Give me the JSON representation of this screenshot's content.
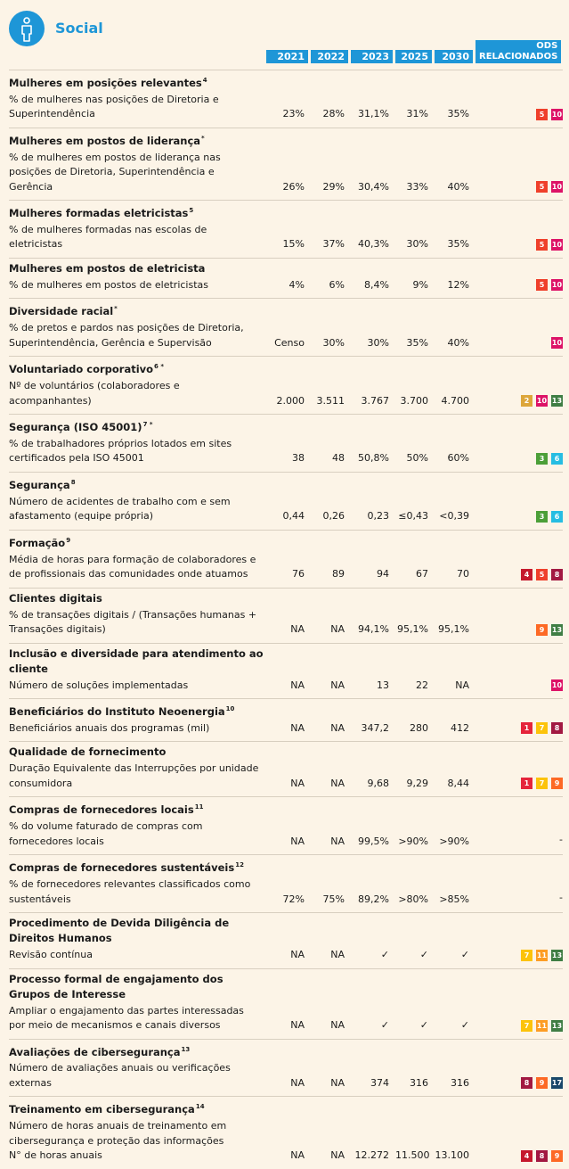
{
  "header": {
    "title": "Social",
    "columns": [
      "2021",
      "2022",
      "2023",
      "2025",
      "2030"
    ],
    "ods_header": "ODS RELACIONADOS"
  },
  "sections": [
    {
      "title": "Mulheres em posições relevantes",
      "note": "4",
      "rows": [
        {
          "label": "% de mulheres nas posições de Diretoria e Superintendência",
          "values": [
            "23%",
            "28%",
            "31,1%",
            "31%",
            "35%"
          ],
          "ods": [
            {
              "label": "5",
              "color": "#ef402b"
            },
            {
              "label": "10",
              "color": "#dd1367"
            }
          ]
        }
      ]
    },
    {
      "title": "Mulheres em postos de liderança",
      "note": "*",
      "rows": [
        {
          "label": "% de mulheres em postos de liderança nas posições de Diretoria, Superintendência e Gerência",
          "values": [
            "26%",
            "29%",
            "30,4%",
            "33%",
            "40%"
          ],
          "ods": [
            {
              "label": "5",
              "color": "#ef402b"
            },
            {
              "label": "10",
              "color": "#dd1367"
            }
          ]
        }
      ]
    },
    {
      "title": "Mulheres formadas eletricistas",
      "note": "5",
      "rows": [
        {
          "label": "% de mulheres formadas nas escolas de eletricistas",
          "values": [
            "15%",
            "37%",
            "40,3%",
            "30%",
            "35%"
          ],
          "ods": [
            {
              "label": "5",
              "color": "#ef402b"
            },
            {
              "label": "10",
              "color": "#dd1367"
            }
          ]
        }
      ]
    },
    {
      "title": "Mulheres em postos de eletricista",
      "rows": [
        {
          "label": "% de mulheres em postos de eletricistas",
          "values": [
            "4%",
            "6%",
            "8,4%",
            "9%",
            "12%"
          ],
          "ods": [
            {
              "label": "5",
              "color": "#ef402b"
            },
            {
              "label": "10",
              "color": "#dd1367"
            }
          ]
        }
      ]
    },
    {
      "title": "Diversidade racial",
      "note": "*",
      "rows": [
        {
          "label": "% de pretos e pardos nas posições de Diretoria, Superintendência, Gerência e Supervisão",
          "values": [
            "Censo",
            "30%",
            "30%",
            "35%",
            "40%"
          ],
          "ods": [
            {
              "label": "10",
              "color": "#dd1367"
            }
          ]
        }
      ]
    },
    {
      "title": "Voluntariado corporativo",
      "note": "6 *",
      "rows": [
        {
          "label": "Nº de voluntários (colaboradores e acompanhantes)",
          "values": [
            "2.000",
            "3.511",
            "3.767",
            "3.700",
            "4.700"
          ],
          "ods": [
            {
              "label": "2",
              "color": "#dda63a"
            },
            {
              "label": "10",
              "color": "#dd1367"
            },
            {
              "label": "13",
              "color": "#3f7e44"
            }
          ]
        }
      ]
    },
    {
      "title": "Segurança (ISO 45001)",
      "note": "7 *",
      "rows": [
        {
          "label": "% de trabalhadores próprios lotados em sites certificados pela ISO 45001",
          "values": [
            "38",
            "48",
            "50,8%",
            "50%",
            "60%"
          ],
          "ods": [
            {
              "label": "3",
              "color": "#4c9f38"
            },
            {
              "label": "6",
              "color": "#26bde2"
            }
          ]
        }
      ]
    },
    {
      "title": "Segurança",
      "note": "8",
      "rows": [
        {
          "label": "Número de acidentes de trabalho com e sem afastamento (equipe própria)",
          "values": [
            "0,44",
            "0,26",
            "0,23",
            "≤0,43",
            "<0,39"
          ],
          "ods": [
            {
              "label": "3",
              "color": "#4c9f38"
            },
            {
              "label": "6",
              "color": "#26bde2"
            }
          ]
        }
      ]
    },
    {
      "title": "Formação",
      "note": "9",
      "rows": [
        {
          "label": "Média de horas para formação de colaboradores e de profissionais das comunidades onde atuamos",
          "values": [
            "76",
            "89",
            "94",
            "67",
            "70"
          ],
          "ods": [
            {
              "label": "4",
              "color": "#c5192d"
            },
            {
              "label": "5",
              "color": "#ef402b"
            },
            {
              "label": "8",
              "color": "#a21942"
            }
          ]
        }
      ]
    },
    {
      "title": "Clientes digitais",
      "rows": [
        {
          "label": "% de transações digitais / (Transações humanas + Transações digitais)",
          "values": [
            "NA",
            "NA",
            "94,1%",
            "95,1%",
            "95,1%"
          ],
          "ods": [
            {
              "label": "9",
              "color": "#fd6925"
            },
            {
              "label": "13",
              "color": "#3f7e44"
            }
          ]
        }
      ]
    },
    {
      "title": "Inclusão e diversidade para atendimento ao cliente",
      "rows": [
        {
          "label": "Número de soluções implementadas",
          "values": [
            "NA",
            "NA",
            "13",
            "22",
            "NA"
          ],
          "ods": [
            {
              "label": "10",
              "color": "#dd1367"
            }
          ]
        }
      ]
    },
    {
      "title": "Beneficiários do Instituto Neoenergia",
      "note": "10",
      "rows": [
        {
          "label": "Beneficiários anuais dos programas (mil)",
          "values": [
            "NA",
            "NA",
            "347,2",
            "280",
            "412"
          ],
          "ods": [
            {
              "label": "1",
              "color": "#e5243b"
            },
            {
              "label": "7",
              "color": "#fcc30b"
            },
            {
              "label": "8",
              "color": "#a21942"
            }
          ]
        }
      ]
    },
    {
      "title": "Qualidade de fornecimento",
      "rows": [
        {
          "label": "Duração Equivalente das Interrupções por unidade consumidora",
          "values": [
            "NA",
            "NA",
            "9,68",
            "9,29",
            "8,44"
          ],
          "ods": [
            {
              "label": "1",
              "color": "#e5243b"
            },
            {
              "label": "7",
              "color": "#fcc30b"
            },
            {
              "label": "9",
              "color": "#fd6925"
            }
          ]
        }
      ]
    },
    {
      "title": "Compras de fornecedores locais",
      "note": "11",
      "rows": [
        {
          "label": "% do volume faturado de compras com fornecedores locais",
          "values": [
            "NA",
            "NA",
            "99,5%",
            ">90%",
            ">90%"
          ],
          "ods_text": "-"
        }
      ]
    },
    {
      "title": "Compras de fornecedores sustentáveis",
      "note": "12",
      "rows": [
        {
          "label": "% de fornecedores relevantes classificados como sustentáveis",
          "values": [
            "72%",
            "75%",
            "89,2%",
            ">80%",
            ">85%"
          ],
          "ods_text": "-"
        }
      ]
    },
    {
      "title": "Procedimento de Devida Diligência de Direitos Humanos",
      "rows": [
        {
          "label": "Revisão contínua",
          "values": [
            "NA",
            "NA",
            "✓",
            "✓",
            "✓"
          ],
          "ods": [
            {
              "label": "7",
              "color": "#fcc30b"
            },
            {
              "label": "11",
              "color": "#fd9d24"
            },
            {
              "label": "13",
              "color": "#3f7e44"
            }
          ]
        }
      ]
    },
    {
      "title": "Processo formal de engajamento dos Grupos de Interesse",
      "rows": [
        {
          "label": "Ampliar o engajamento das partes interessadas por meio de mecanismos e canais diversos",
          "values": [
            "NA",
            "NA",
            "✓",
            "✓",
            "✓"
          ],
          "ods": [
            {
              "label": "7",
              "color": "#fcc30b"
            },
            {
              "label": "11",
              "color": "#fd9d24"
            },
            {
              "label": "13",
              "color": "#3f7e44"
            }
          ]
        }
      ]
    },
    {
      "title": "Avaliações de cibersegurança",
      "note": "13",
      "rows": [
        {
          "label": "Número de avaliações anuais ou verificações externas",
          "values": [
            "NA",
            "NA",
            "374",
            "316",
            "316"
          ],
          "ods": [
            {
              "label": "8",
              "color": "#a21942"
            },
            {
              "label": "9",
              "color": "#fd6925"
            },
            {
              "label": "17",
              "color": "#19486a"
            }
          ]
        }
      ]
    },
    {
      "title": "Treinamento em cibersegurança",
      "note": "14",
      "rows": [
        {
          "label": "Número de horas anuais de treinamento em cibersegurança e proteção das informações",
          "sublabel": "N° de horas anuais",
          "values": [
            "NA",
            "NA",
            "12.272",
            "11.500",
            "13.100"
          ],
          "ods": [
            {
              "label": "4",
              "color": "#c5192d"
            },
            {
              "label": "8",
              "color": "#a21942"
            },
            {
              "label": "9",
              "color": "#fd6925"
            }
          ]
        }
      ]
    }
  ]
}
